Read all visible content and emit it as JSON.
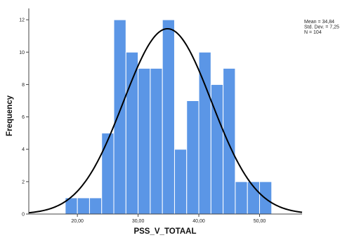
{
  "chart_data": {
    "type": "bar",
    "subtype": "histogram-with-normal-curve",
    "xlabel": "PSS_V_TOTAAL",
    "ylabel": "Frequency",
    "bin_width": 2,
    "bins": [
      {
        "start": 18,
        "end": 20,
        "count": 1
      },
      {
        "start": 20,
        "end": 22,
        "count": 1
      },
      {
        "start": 22,
        "end": 24,
        "count": 1
      },
      {
        "start": 24,
        "end": 26,
        "count": 5
      },
      {
        "start": 26,
        "end": 28,
        "count": 12
      },
      {
        "start": 28,
        "end": 30,
        "count": 10
      },
      {
        "start": 30,
        "end": 32,
        "count": 9
      },
      {
        "start": 32,
        "end": 34,
        "count": 9
      },
      {
        "start": 34,
        "end": 36,
        "count": 12
      },
      {
        "start": 36,
        "end": 38,
        "count": 4
      },
      {
        "start": 38,
        "end": 40,
        "count": 7
      },
      {
        "start": 40,
        "end": 42,
        "count": 10
      },
      {
        "start": 42,
        "end": 44,
        "count": 8
      },
      {
        "start": 44,
        "end": 46,
        "count": 9
      },
      {
        "start": 46,
        "end": 48,
        "count": 2
      },
      {
        "start": 48,
        "end": 50,
        "count": 2
      },
      {
        "start": 50,
        "end": 52,
        "count": 2
      }
    ],
    "xlim": [
      12,
      57
    ],
    "ylim": [
      0,
      12.7
    ],
    "x_ticks": [
      20,
      30,
      40,
      50
    ],
    "x_tick_labels": [
      "20,00",
      "30,00",
      "40,00",
      "50,00"
    ],
    "y_ticks": [
      0,
      2,
      4,
      6,
      8,
      10,
      12
    ],
    "y_tick_labels": [
      "0",
      "2",
      "4",
      "6",
      "8",
      "10",
      "12"
    ],
    "normal_curve": {
      "mean": 34.84,
      "std_dev": 7.25,
      "n": 104
    },
    "stats_labels": [
      "Mean = 34,84",
      "Std. Dev. = 7,25",
      "N = 104"
    ],
    "bar_color": "#5b96e6",
    "bar_edge_color": "#ffffff",
    "curve_color": "#000000",
    "grid": false
  }
}
